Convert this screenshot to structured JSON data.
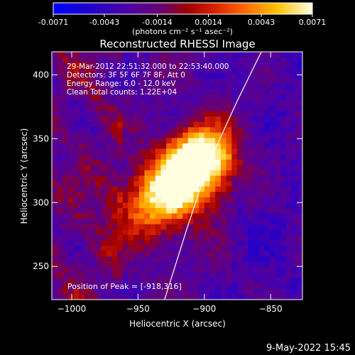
{
  "colorbar": {
    "ticks": [
      "-0.0071",
      "-0.0043",
      "-0.0014",
      "0.0014",
      "0.0043",
      "0.0071"
    ],
    "unit_label": "(photons cm⁻² s⁻¹ asec⁻²)",
    "range": [
      -0.0071,
      0.0071
    ]
  },
  "chart_data": {
    "type": "heatmap",
    "title": "Reconstructed RHESSI Image",
    "xlabel": "Heliocentric X (arcsec)",
    "ylabel": "Heliocentric Y (arcsec)",
    "xlim": [
      -1015,
      -826
    ],
    "ylim": [
      224,
      418
    ],
    "xticks": [
      -1000,
      -950,
      -900,
      -850
    ],
    "yticks": [
      250,
      300,
      350,
      400
    ],
    "peak": [
      -918,
      316
    ],
    "limb_points": [
      [
        -930,
        224
      ],
      [
        -913,
        280
      ],
      [
        -897,
        330
      ],
      [
        -875,
        380
      ],
      [
        -857,
        418
      ]
    ],
    "annotations": [
      "29-Mar-2012 22:51:32.000 to 22:53:40.000",
      "Detectors: 3F 5F 6F 7F 8F, Att 0",
      "Energy Range: 6.0 - 12.0 keV",
      "Clean     Total counts: 1.22E+04"
    ],
    "peak_label": "Position of Peak = [-918,316]"
  },
  "footer": "9-May-2022 15:45"
}
